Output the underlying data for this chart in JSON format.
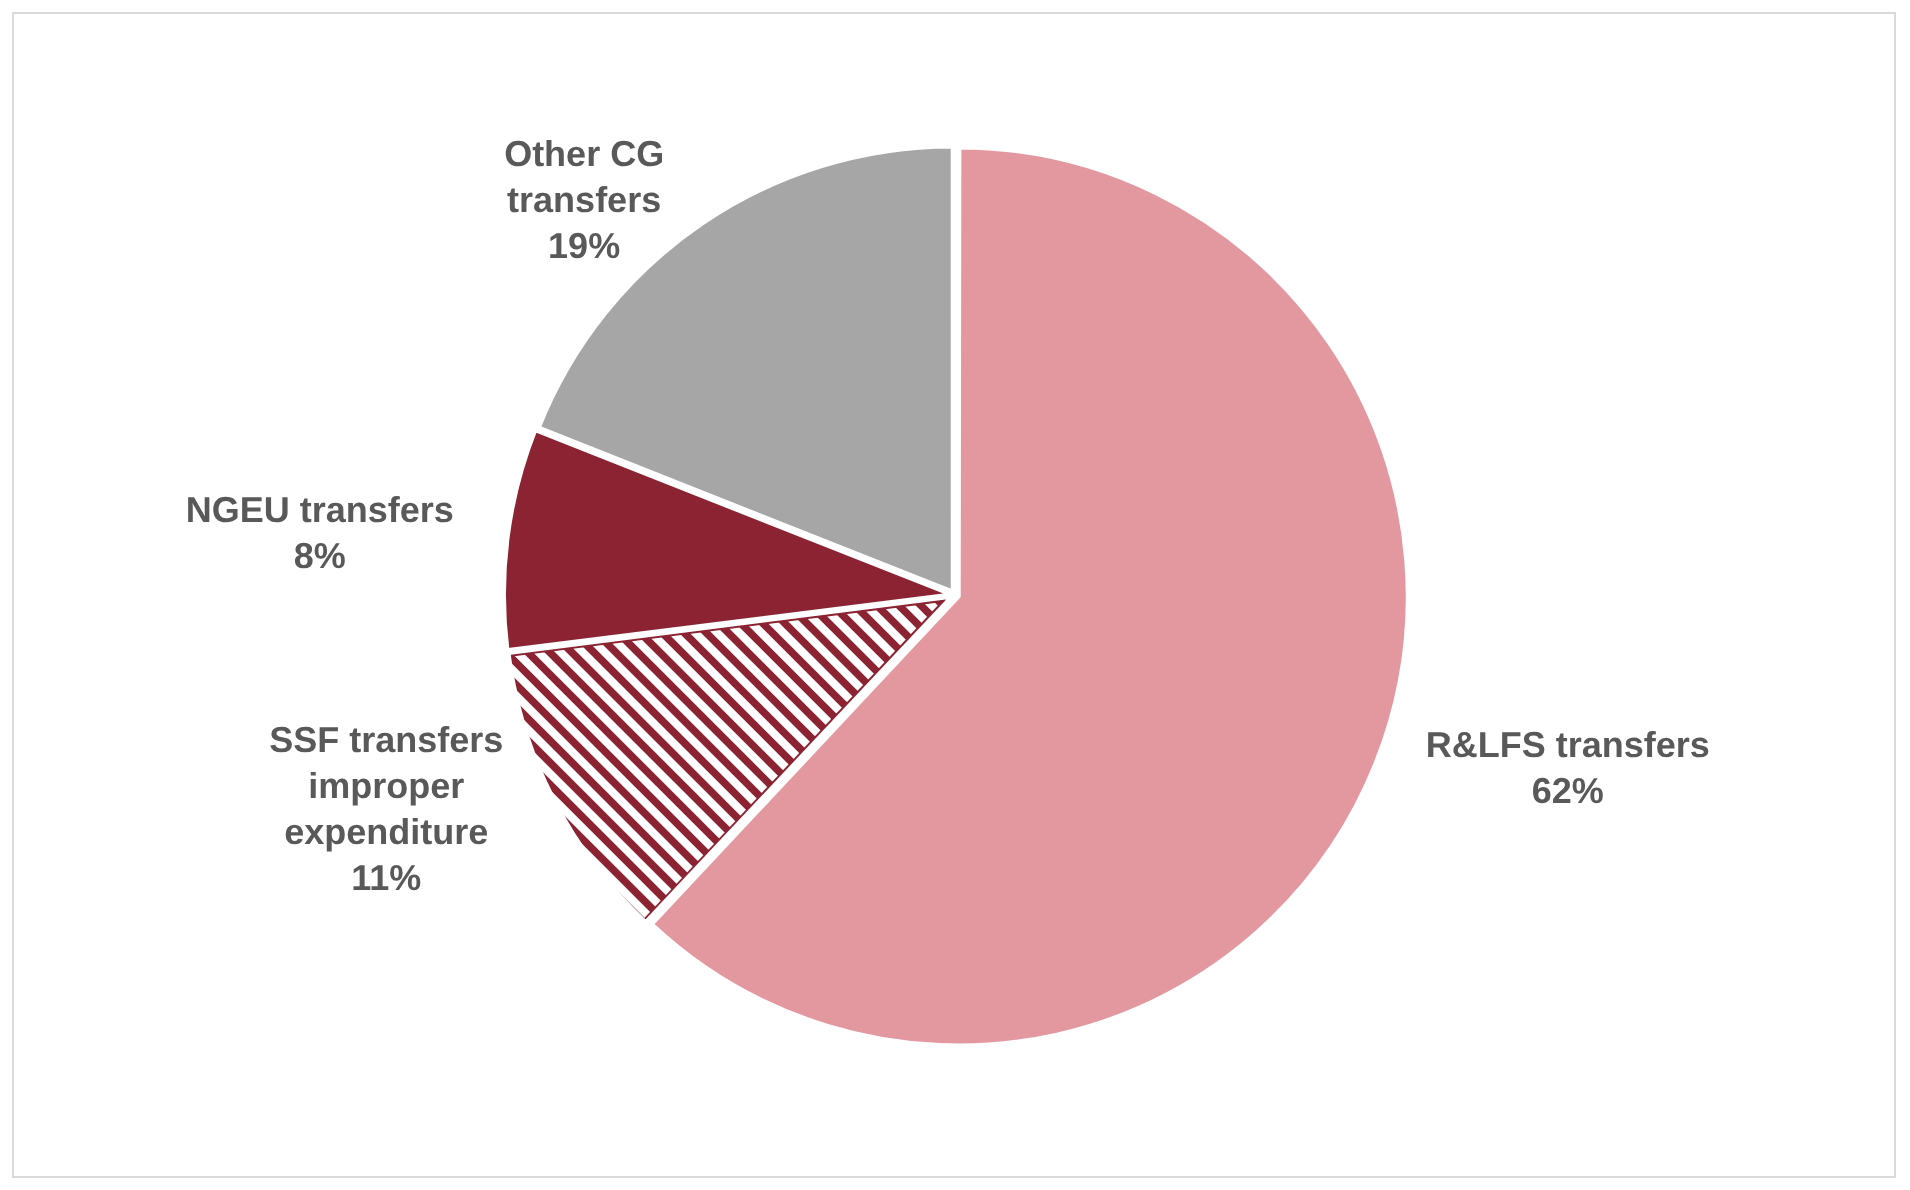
{
  "chart_data": {
    "type": "pie",
    "categories": [
      "R&LFS transfers",
      "SSF transfers improper expenditure",
      "NGEU transfers",
      "Other CG transfers"
    ],
    "values": [
      62,
      11,
      8,
      19
    ],
    "colors": [
      "#e3979f",
      "#8c2332",
      "#8c2332",
      "#a6a6a6"
    ],
    "value_labels": [
      "62%",
      "11%",
      "8%",
      "19%"
    ],
    "legend": false
  }
}
